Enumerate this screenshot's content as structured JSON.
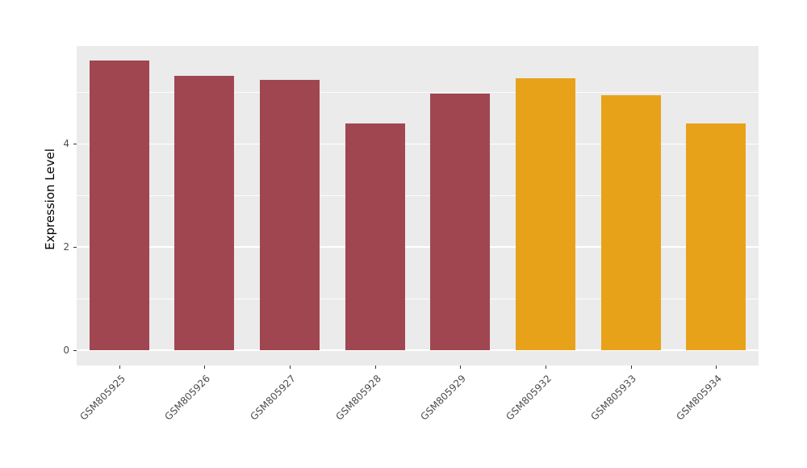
{
  "chart_data": {
    "type": "bar",
    "title": "",
    "xlabel": "",
    "ylabel": "Expression Level",
    "categories": [
      "GSM805925",
      "GSM805926",
      "GSM805927",
      "GSM805928",
      "GSM805929",
      "GSM805932",
      "GSM805933",
      "GSM805934"
    ],
    "values": [
      5.62,
      5.32,
      5.25,
      4.4,
      4.97,
      5.28,
      4.95,
      4.4
    ],
    "bar_colors": [
      "#A04650",
      "#A04650",
      "#A04650",
      "#A04650",
      "#A04650",
      "#E8A21A",
      "#E8A21A",
      "#E8A21A"
    ],
    "palette": {
      "group1": "#A04650",
      "group2": "#E8A21A"
    },
    "ylim": [
      -0.3,
      5.9
    ],
    "yticks": [
      0,
      2,
      4
    ],
    "ytick_labels": [
      "0",
      "2",
      "4"
    ],
    "yticks_minor": [
      1,
      3,
      5
    ],
    "grid": true,
    "legend_position": "none",
    "panel_background": "#EBEBEB",
    "gridline_color": "#FFFFFF",
    "bar_width_ratio": 0.7
  }
}
